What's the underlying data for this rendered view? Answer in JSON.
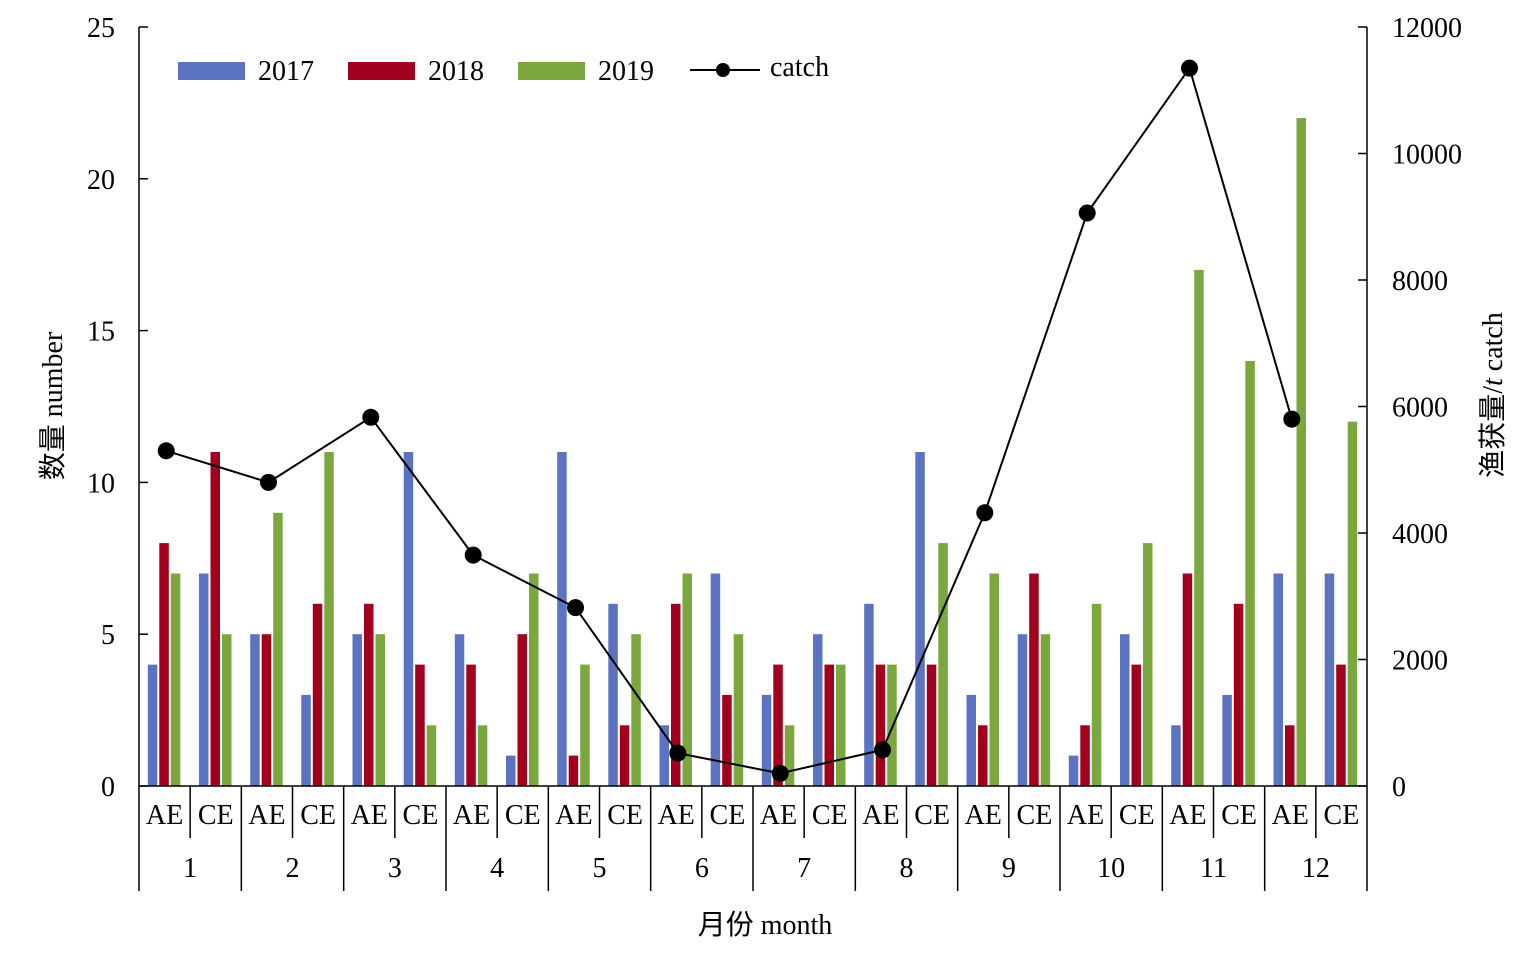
{
  "chart_data": {
    "type": "bar",
    "months": [
      "1",
      "2",
      "3",
      "4",
      "5",
      "6",
      "7",
      "8",
      "9",
      "10",
      "11",
      "12"
    ],
    "groups": [
      "AE",
      "CE"
    ],
    "categories": [
      "1 AE",
      "1 CE",
      "2 AE",
      "2 CE",
      "3 AE",
      "3 CE",
      "4 AE",
      "4 CE",
      "5 AE",
      "5 CE",
      "6 AE",
      "6 CE",
      "7 AE",
      "7 CE",
      "8 AE",
      "8 CE",
      "9 AE",
      "9 CE",
      "10 AE",
      "10 CE",
      "11 AE",
      "11 CE",
      "12 AE",
      "12 CE"
    ],
    "series": [
      {
        "name": "2017",
        "color": "#5b74c2",
        "values": [
          4,
          7,
          5,
          3,
          5,
          11,
          5,
          1,
          11,
          6,
          2,
          7,
          3,
          5,
          6,
          11,
          3,
          5,
          1,
          5,
          2,
          3,
          7,
          7
        ]
      },
      {
        "name": "2018",
        "color": "#a2001c",
        "values": [
          8,
          11,
          5,
          6,
          6,
          4,
          4,
          5,
          1,
          2,
          6,
          3,
          4,
          4,
          4,
          4,
          2,
          7,
          2,
          4,
          7,
          6,
          2,
          4
        ]
      },
      {
        "name": "2019",
        "color": "#7aa83e",
        "values": [
          7,
          5,
          9,
          11,
          5,
          2,
          2,
          7,
          4,
          5,
          7,
          5,
          2,
          4,
          4,
          8,
          7,
          5,
          6,
          8,
          17,
          14,
          22,
          12
        ]
      }
    ],
    "line": {
      "name": "catch",
      "color": "#000000",
      "values": [
        5300,
        4800,
        5830,
        3650,
        2820,
        520,
        200,
        570,
        4320,
        9060,
        11350,
        5800
      ]
    },
    "xlabel": "月份 month",
    "ylabel": "数量 number",
    "y2label_prefix": "渔获量/",
    "y2label_italic": "t",
    "y2label_suffix": " catch",
    "ylim": [
      0,
      25
    ],
    "y2lim": [
      0,
      12000
    ],
    "yticks": [
      0,
      5,
      10,
      15,
      20,
      25
    ],
    "y2ticks": [
      0,
      2000,
      4000,
      6000,
      8000,
      10000,
      12000
    ],
    "grid": false,
    "legend_position": "top-left"
  }
}
